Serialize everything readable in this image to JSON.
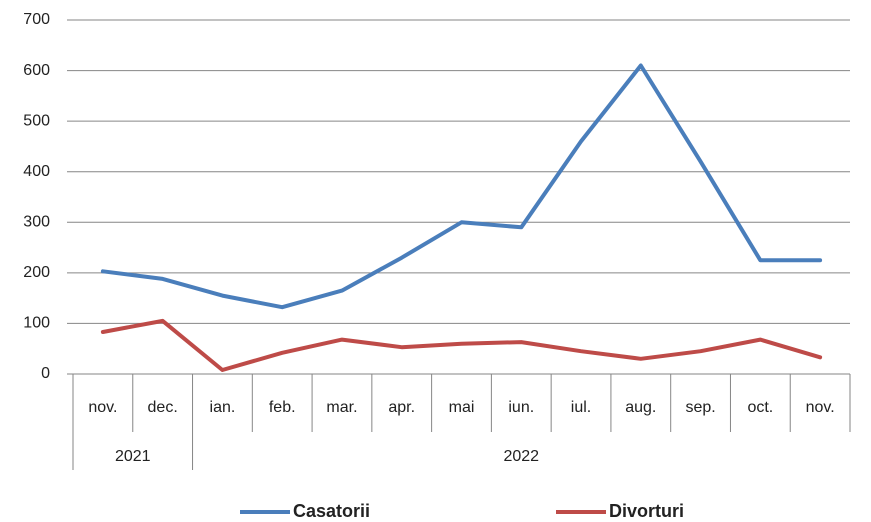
{
  "chart_data": {
    "type": "line",
    "categories": [
      "nov.",
      "dec.",
      "ian.",
      "feb.",
      "mar.",
      "apr.",
      "mai",
      "iun.",
      "iul.",
      "aug.",
      "sep.",
      "oct.",
      "nov."
    ],
    "x_groups": [
      {
        "label": "2021",
        "count": 2
      },
      {
        "label": "2022",
        "count": 11
      }
    ],
    "series": [
      {
        "name": "Casatorii",
        "color": "#4a7ebb",
        "values": [
          203,
          188,
          155,
          132,
          165,
          230,
          300,
          290,
          460,
          610,
          420,
          225,
          225
        ]
      },
      {
        "name": "Divorturi",
        "color": "#be4b48",
        "values": [
          83,
          105,
          8,
          42,
          68,
          53,
          60,
          63,
          45,
          30,
          45,
          68,
          33
        ]
      }
    ],
    "ylim": [
      0,
      700
    ],
    "yticks": [
      0,
      100,
      200,
      300,
      400,
      500,
      600,
      700
    ],
    "grid": true,
    "legend": "bottom"
  }
}
